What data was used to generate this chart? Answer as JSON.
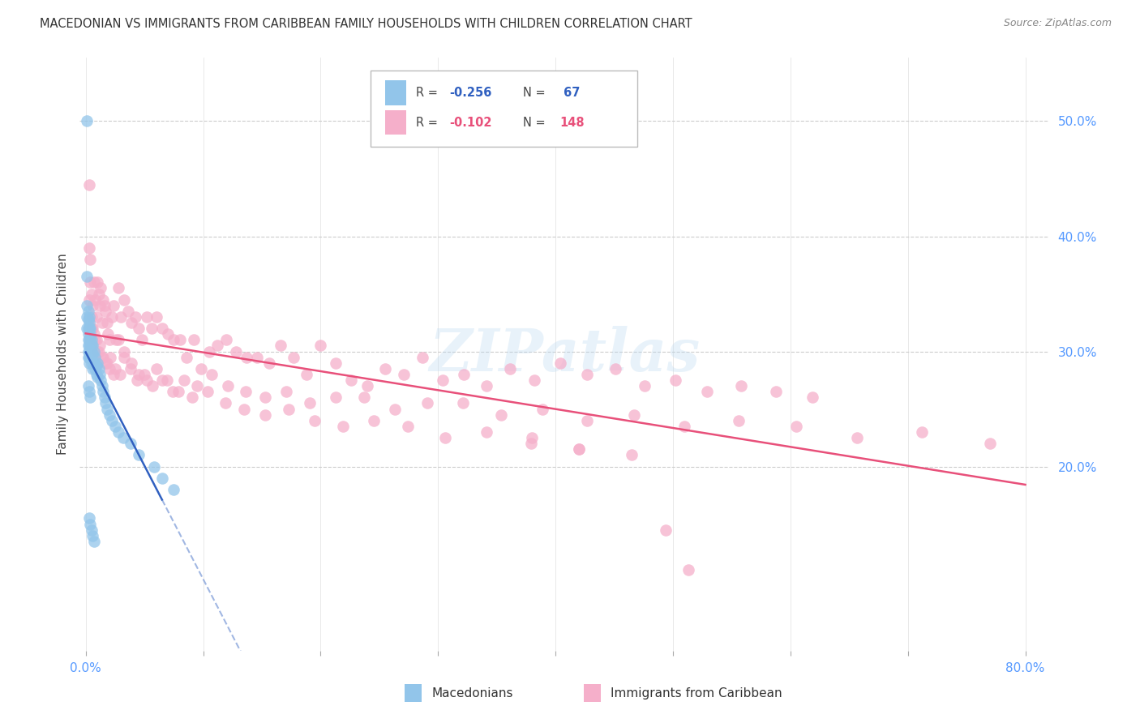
{
  "title": "MACEDONIAN VS IMMIGRANTS FROM CARIBBEAN FAMILY HOUSEHOLDS WITH CHILDREN CORRELATION CHART",
  "source": "Source: ZipAtlas.com",
  "ylabel_label": "Family Households with Children",
  "legend_macedonians": "Macedonians",
  "legend_caribbean": "Immigrants from Caribbean",
  "x_min": -0.005,
  "x_max": 0.82,
  "y_min": 0.04,
  "y_max": 0.555,
  "x_ticks": [
    0.0,
    0.1,
    0.2,
    0.3,
    0.4,
    0.5,
    0.6,
    0.7,
    0.8
  ],
  "x_tick_labels_sparse": [
    "0.0%",
    "",
    "",
    "",
    "",
    "",
    "",
    "",
    "80.0%"
  ],
  "y_ticks": [
    0.2,
    0.3,
    0.4,
    0.5
  ],
  "y_tick_labels": [
    "20.0%",
    "30.0%",
    "40.0%",
    "50.0%"
  ],
  "color_macedonian": "#92C5EA",
  "color_caribbean": "#F5AFCA",
  "trendline_macedonian": "#3060C0",
  "trendline_caribbean": "#E8507A",
  "watermark": "ZIPatlas",
  "legend_r1_label": "R = ",
  "legend_r1_val": "-0.256",
  "legend_n1_label": "N = ",
  "legend_n1_val": " 67",
  "legend_r2_label": "R = ",
  "legend_r2_val": "-0.102",
  "legend_n2_label": "N = ",
  "legend_n2_val": "148",
  "r1_color": "#3060C0",
  "r2_color": "#E8507A",
  "mac_x": [
    0.001,
    0.001,
    0.001,
    0.001,
    0.001,
    0.002,
    0.002,
    0.002,
    0.002,
    0.002,
    0.002,
    0.002,
    0.002,
    0.003,
    0.003,
    0.003,
    0.003,
    0.003,
    0.003,
    0.003,
    0.003,
    0.004,
    0.004,
    0.004,
    0.004,
    0.004,
    0.005,
    0.005,
    0.005,
    0.005,
    0.006,
    0.006,
    0.006,
    0.007,
    0.007,
    0.008,
    0.008,
    0.009,
    0.009,
    0.01,
    0.01,
    0.011,
    0.012,
    0.013,
    0.014,
    0.015,
    0.016,
    0.017,
    0.018,
    0.02,
    0.022,
    0.025,
    0.028,
    0.032,
    0.038,
    0.045,
    0.058,
    0.065,
    0.075,
    0.002,
    0.003,
    0.004,
    0.003,
    0.004,
    0.005,
    0.006,
    0.007
  ],
  "mac_y": [
    0.5,
    0.365,
    0.34,
    0.33,
    0.32,
    0.335,
    0.328,
    0.32,
    0.315,
    0.31,
    0.305,
    0.3,
    0.295,
    0.33,
    0.325,
    0.32,
    0.31,
    0.305,
    0.3,
    0.295,
    0.29,
    0.32,
    0.315,
    0.31,
    0.305,
    0.295,
    0.31,
    0.305,
    0.298,
    0.29,
    0.305,
    0.298,
    0.285,
    0.3,
    0.29,
    0.295,
    0.285,
    0.288,
    0.28,
    0.29,
    0.278,
    0.285,
    0.28,
    0.275,
    0.27,
    0.265,
    0.26,
    0.255,
    0.25,
    0.245,
    0.24,
    0.235,
    0.23,
    0.225,
    0.22,
    0.21,
    0.2,
    0.19,
    0.18,
    0.27,
    0.265,
    0.26,
    0.155,
    0.15,
    0.145,
    0.14,
    0.135
  ],
  "car_x": [
    0.003,
    0.003,
    0.004,
    0.004,
    0.005,
    0.005,
    0.006,
    0.007,
    0.008,
    0.009,
    0.01,
    0.011,
    0.012,
    0.013,
    0.014,
    0.015,
    0.016,
    0.017,
    0.018,
    0.019,
    0.02,
    0.022,
    0.024,
    0.026,
    0.028,
    0.03,
    0.033,
    0.036,
    0.039,
    0.042,
    0.045,
    0.048,
    0.052,
    0.056,
    0.06,
    0.065,
    0.07,
    0.075,
    0.08,
    0.086,
    0.092,
    0.098,
    0.105,
    0.112,
    0.12,
    0.128,
    0.137,
    0.146,
    0.156,
    0.166,
    0.177,
    0.188,
    0.2,
    0.213,
    0.226,
    0.24,
    0.255,
    0.271,
    0.287,
    0.304,
    0.322,
    0.341,
    0.361,
    0.382,
    0.404,
    0.427,
    0.451,
    0.476,
    0.502,
    0.529,
    0.558,
    0.588,
    0.619,
    0.006,
    0.008,
    0.01,
    0.012,
    0.015,
    0.018,
    0.021,
    0.025,
    0.029,
    0.033,
    0.038,
    0.044,
    0.05,
    0.057,
    0.065,
    0.074,
    0.084,
    0.095,
    0.107,
    0.121,
    0.136,
    0.153,
    0.171,
    0.191,
    0.213,
    0.237,
    0.263,
    0.291,
    0.321,
    0.354,
    0.389,
    0.427,
    0.467,
    0.51,
    0.556,
    0.605,
    0.657,
    0.712,
    0.77,
    0.005,
    0.007,
    0.009,
    0.011,
    0.014,
    0.017,
    0.02,
    0.024,
    0.028,
    0.033,
    0.039,
    0.045,
    0.052,
    0.06,
    0.069,
    0.079,
    0.091,
    0.104,
    0.119,
    0.135,
    0.153,
    0.173,
    0.195,
    0.219,
    0.245,
    0.274,
    0.306,
    0.341,
    0.379,
    0.42,
    0.465,
    0.513,
    0.494,
    0.003,
    0.42,
    0.38
  ],
  "car_y": [
    0.445,
    0.39,
    0.36,
    0.38,
    0.35,
    0.33,
    0.34,
    0.36,
    0.345,
    0.33,
    0.36,
    0.35,
    0.34,
    0.355,
    0.325,
    0.345,
    0.34,
    0.335,
    0.325,
    0.315,
    0.31,
    0.33,
    0.34,
    0.31,
    0.355,
    0.33,
    0.345,
    0.335,
    0.325,
    0.33,
    0.32,
    0.31,
    0.33,
    0.32,
    0.33,
    0.32,
    0.315,
    0.31,
    0.31,
    0.295,
    0.31,
    0.285,
    0.3,
    0.305,
    0.31,
    0.3,
    0.295,
    0.295,
    0.29,
    0.305,
    0.295,
    0.28,
    0.305,
    0.29,
    0.275,
    0.27,
    0.285,
    0.28,
    0.295,
    0.275,
    0.28,
    0.27,
    0.285,
    0.275,
    0.29,
    0.28,
    0.285,
    0.27,
    0.275,
    0.265,
    0.27,
    0.265,
    0.26,
    0.32,
    0.31,
    0.3,
    0.305,
    0.295,
    0.29,
    0.295,
    0.285,
    0.28,
    0.295,
    0.285,
    0.275,
    0.28,
    0.27,
    0.275,
    0.265,
    0.275,
    0.27,
    0.28,
    0.27,
    0.265,
    0.26,
    0.265,
    0.255,
    0.26,
    0.26,
    0.25,
    0.255,
    0.255,
    0.245,
    0.25,
    0.24,
    0.245,
    0.235,
    0.24,
    0.235,
    0.225,
    0.23,
    0.22,
    0.32,
    0.315,
    0.31,
    0.3,
    0.295,
    0.29,
    0.285,
    0.28,
    0.31,
    0.3,
    0.29,
    0.28,
    0.275,
    0.285,
    0.275,
    0.265,
    0.26,
    0.265,
    0.255,
    0.25,
    0.245,
    0.25,
    0.24,
    0.235,
    0.24,
    0.235,
    0.225,
    0.23,
    0.22,
    0.215,
    0.21,
    0.11,
    0.145,
    0.345,
    0.215,
    0.225
  ]
}
